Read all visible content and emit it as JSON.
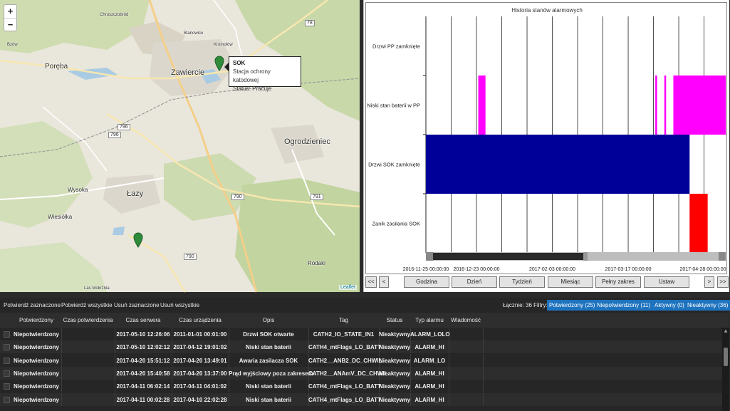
{
  "map": {
    "zoom_in": "+",
    "zoom_out": "−",
    "places": [
      "Poręba",
      "Zawiercie",
      "Ogrodzieniec",
      "Wysoka",
      "Łazy",
      "Wiesiółka",
      "Rodaki",
      "Las Mokrznia",
      "Bzów",
      "Kromołów",
      "Blanowice",
      "Chruszczobród"
    ],
    "roads": [
      "78",
      "796",
      "796",
      "790",
      "791",
      "790"
    ],
    "popup": {
      "title": "SOK",
      "line1": "Stacja ochrony katodowej",
      "line2": "Status: Pracuje"
    },
    "attribution": "Leaflet"
  },
  "chart_data": {
    "type": "timeline",
    "title": "Historia stanów alarmowych",
    "categories": [
      "Drzwi PP zamknięte",
      "Niski stan baterii w PP",
      "Drzwi SOK zamknięte",
      "Zanik zasilania SOK"
    ],
    "x_ticks": [
      "2016-11-25 00:00:00",
      "2016-12-23 00:00:00",
      "2017-02-03 00:00:00",
      "2017-03-17 00:00:00",
      "2017-04-28 00:00:00"
    ],
    "xlim": [
      "2016-11-25",
      "2017-05-10"
    ],
    "series": [
      {
        "category": "Niski stan baterii w PP",
        "color": "#ff00ff",
        "intervals": [
          [
            "2016-12-24",
            "2016-12-28"
          ],
          [
            "2017-04-01",
            "2017-04-02"
          ],
          [
            "2017-04-06",
            "2017-04-07"
          ],
          [
            "2017-04-11",
            "2017-05-10"
          ]
        ]
      },
      {
        "category": "Drzwi SOK zamknięte",
        "color": "#000099",
        "intervals": [
          [
            "2016-11-25",
            "2017-04-20"
          ]
        ]
      },
      {
        "category": "Zanik zasilania SOK",
        "color": "#ff0000",
        "intervals": [
          [
            "2017-04-20",
            "2017-04-30"
          ]
        ]
      }
    ]
  },
  "nav": {
    "first": "<<",
    "prev": "<",
    "hour": "Godzina",
    "day": "Dzień",
    "week": "Tydzień",
    "month": "Miesiąc",
    "full": "Pełny zakres",
    "set": "Ustaw",
    "next": ">",
    "last": ">>"
  },
  "actions": {
    "confirm_selected": "Potwierdź zaznaczone",
    "confirm_all": "Potwierdź wszystkie",
    "delete_selected": "Usuń zaznaczone",
    "delete_all": "Usuń wszystkie"
  },
  "summary": "Łącznie: 36 Filtry:",
  "filters": [
    "Potwierdzony (25)",
    "Niepotwierdzony (11)",
    "Aktywny (0)",
    "Nieaktywny (36)"
  ],
  "table": {
    "headers": [
      "Potwierdzony",
      "Czas potwierdzenia",
      "Czas serwera",
      "Czas urządzenia",
      "Opis",
      "Tag",
      "Status",
      "Typ alarmu",
      "Wiadomość"
    ],
    "rows": [
      [
        "Niepotwierdzony",
        "",
        "2017-05-10 12:26:06",
        "2011-01-01 00:01:00",
        "Drzwi SOK otwarte",
        "CATH2_IO_STATE_IN1",
        "Nieaktywny",
        "ALARM_LOLO",
        ""
      ],
      [
        "Niepotwierdzony",
        "",
        "2017-05-10 12:02:12",
        "2017-04-12 19:01:02",
        "Niski stan baterii",
        "CATH4_mtFlags_LO_BATT",
        "Nieaktywny",
        "ALARM_HI",
        ""
      ],
      [
        "Niepotwierdzony",
        "",
        "2017-04-20 15:51:12",
        "2017-04-20 13:49:01",
        "Awaria zasilacza SOK",
        "CATH2__ANB2_DC_CHWIL",
        "Nieaktywny",
        "ALARM_LO",
        ""
      ],
      [
        "Niepotwierdzony",
        "",
        "2017-04-20 15:40:58",
        "2017-04-20 13:37:00",
        "Prąd wyjściowy poza zakresem",
        "CATH2__ANAmV_DC_CHWIL",
        "Nieaktywny",
        "ALARM_HI",
        ""
      ],
      [
        "Niepotwierdzony",
        "",
        "2017-04-11 06:02:14",
        "2017-04-11 04:01:02",
        "Niski stan baterii",
        "CATH4_mtFlags_LO_BATT",
        "Nieaktywny",
        "ALARM_HI",
        ""
      ],
      [
        "Niepotwierdzony",
        "",
        "2017-04-11 00:02:28",
        "2017-04-10 22:02:28",
        "Niski stan baterii",
        "CATH4_mtFlags_LO_BATT",
        "Nieaktywny",
        "ALARM_HI",
        ""
      ]
    ]
  }
}
